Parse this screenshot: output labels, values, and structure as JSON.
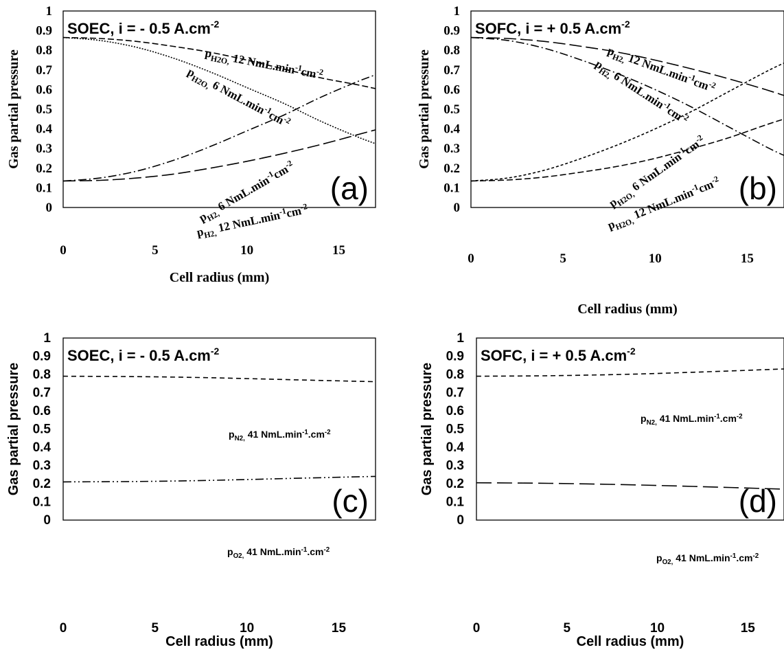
{
  "chart_data": [
    {
      "type": "line",
      "panel_label": "(a)",
      "title": "SOEC, i = - 0.5 A.cm-2",
      "title_main": "SOEC, i = - 0.5 A.cm",
      "title_sup": "-2",
      "xlabel": "Cell radius (mm)",
      "ylabel": "Gas partial pressure",
      "xlim": [
        0,
        17
      ],
      "ylim": [
        0,
        1
      ],
      "xticks": [
        "0",
        "5",
        "10",
        "15"
      ],
      "yticks": [
        "0",
        "0.1",
        "0.2",
        "0.3",
        "0.4",
        "0.5",
        "0.6",
        "0.7",
        "0.8",
        "0.9",
        "1"
      ],
      "grid": false,
      "series": [
        {
          "name": "pH2O, 12 NmL.min-1cm-2",
          "x": [
            0,
            2,
            4,
            6,
            8,
            10,
            12,
            14,
            16,
            17
          ],
          "values": [
            0.865,
            0.86,
            0.845,
            0.82,
            0.79,
            0.75,
            0.705,
            0.66,
            0.625,
            0.605
          ]
        },
        {
          "name": "pH2O, 6 NmL.min-1cm-2",
          "x": [
            0,
            2,
            4,
            6,
            8,
            10,
            12,
            14,
            16,
            17
          ],
          "values": [
            0.865,
            0.85,
            0.815,
            0.76,
            0.69,
            0.61,
            0.53,
            0.44,
            0.36,
            0.325
          ]
        },
        {
          "name": "pH2, 6 NmL.min-1cm-2",
          "x": [
            0,
            2,
            4,
            6,
            8,
            10,
            12,
            14,
            16,
            17
          ],
          "values": [
            0.135,
            0.15,
            0.185,
            0.24,
            0.31,
            0.39,
            0.47,
            0.56,
            0.64,
            0.675
          ]
        },
        {
          "name": "pH2, 12 NmL.min-1cm-2",
          "x": [
            0,
            2,
            4,
            6,
            8,
            10,
            12,
            14,
            16,
            17
          ],
          "values": [
            0.135,
            0.138,
            0.15,
            0.17,
            0.2,
            0.235,
            0.275,
            0.32,
            0.37,
            0.395
          ]
        }
      ]
    },
    {
      "type": "line",
      "panel_label": "(b)",
      "title": "SOFC, i = + 0.5 A.cm-2",
      "title_main": "SOFC, i = + 0.5 A.cm",
      "title_sup": "-2",
      "xlabel": "Cell radius (mm)",
      "ylabel": "Gas partial pressure",
      "xlim": [
        0,
        17
      ],
      "ylim": [
        0,
        1
      ],
      "xticks": [
        "0",
        "5",
        "10",
        "15"
      ],
      "yticks": [
        "0",
        "0.1",
        "0.2",
        "0.3",
        "0.4",
        "0.5",
        "0.6",
        "0.7",
        "0.8",
        "0.9",
        "1"
      ],
      "grid": false,
      "series": [
        {
          "name": "pH2, 12 NmL.min-1cm-2",
          "x": [
            0,
            2,
            4,
            6,
            8,
            10,
            12,
            14,
            16,
            17
          ],
          "values": [
            0.865,
            0.86,
            0.845,
            0.82,
            0.79,
            0.75,
            0.705,
            0.655,
            0.6,
            0.57
          ]
        },
        {
          "name": "pH2, 6 NmL.min-1cm-2",
          "x": [
            0,
            2,
            4,
            6,
            8,
            10,
            12,
            14,
            16,
            17
          ],
          "values": [
            0.865,
            0.85,
            0.81,
            0.75,
            0.68,
            0.6,
            0.51,
            0.41,
            0.31,
            0.265
          ]
        },
        {
          "name": "pH2O, 6 NmL.min-1cm-2",
          "x": [
            0,
            2,
            4,
            6,
            8,
            10,
            12,
            14,
            16,
            17
          ],
          "values": [
            0.135,
            0.15,
            0.19,
            0.25,
            0.32,
            0.4,
            0.49,
            0.59,
            0.69,
            0.735
          ]
        },
        {
          "name": "pH2O, 12 NmL.min-1cm-2",
          "x": [
            0,
            2,
            4,
            6,
            8,
            10,
            12,
            14,
            16,
            17
          ],
          "values": [
            0.135,
            0.14,
            0.155,
            0.18,
            0.21,
            0.25,
            0.3,
            0.355,
            0.42,
            0.45
          ]
        }
      ]
    },
    {
      "type": "line",
      "panel_label": "(c)",
      "title": "SOEC, i = - 0.5 A.cm-2",
      "title_main": "SOEC, i = - 0.5 A.cm",
      "title_sup": "-2",
      "xlabel": "Cell radius (mm)",
      "ylabel": "Gas partial pressure",
      "xlim": [
        0,
        17
      ],
      "ylim": [
        0,
        1
      ],
      "xticks": [
        "0",
        "5",
        "10",
        "15"
      ],
      "yticks": [
        "0",
        "0.1",
        "0.2",
        "0.3",
        "0.4",
        "0.5",
        "0.6",
        "0.7",
        "0.8",
        "0.9",
        "1"
      ],
      "grid": false,
      "series": [
        {
          "name": "pN2, 41 NmL.min-1.cm-2",
          "x": [
            0,
            4,
            8,
            12,
            17
          ],
          "values": [
            0.79,
            0.788,
            0.782,
            0.772,
            0.76
          ]
        },
        {
          "name": "pO2, 41 NmL.min-1.cm-2",
          "x": [
            0,
            4,
            8,
            12,
            17
          ],
          "values": [
            0.21,
            0.212,
            0.218,
            0.228,
            0.24
          ]
        }
      ]
    },
    {
      "type": "line",
      "panel_label": "(d)",
      "title": "SOFC, i = + 0.5 A.cm-2",
      "title_main": "SOFC, i = + 0.5 A.cm",
      "title_sup": "-2",
      "xlabel": "Cell radius (mm)",
      "ylabel": "Gas partial pressure",
      "xlim": [
        0,
        17
      ],
      "ylim": [
        0,
        1
      ],
      "xticks": [
        "0",
        "5",
        "10",
        "15"
      ],
      "yticks": [
        "0",
        "0.1",
        "0.2",
        "0.3",
        "0.4",
        "0.5",
        "0.6",
        "0.7",
        "0.8",
        "0.9",
        "1"
      ],
      "grid": false,
      "series": [
        {
          "name": "pN2, 41 NmL.min-1.cm-2",
          "x": [
            0,
            4,
            8,
            12,
            17
          ],
          "values": [
            0.79,
            0.793,
            0.8,
            0.812,
            0.83
          ]
        },
        {
          "name": "pO2, 41 NmL.min-1.cm-2",
          "x": [
            0,
            4,
            8,
            12,
            17
          ],
          "values": [
            0.205,
            0.202,
            0.195,
            0.185,
            0.17
          ]
        }
      ]
    }
  ]
}
